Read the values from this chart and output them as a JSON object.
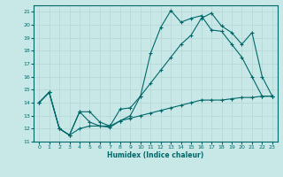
{
  "background_color": "#c8e8e8",
  "grid_color": "#b8d8d8",
  "line_color": "#006868",
  "xlabel": "Humidex (Indice chaleur)",
  "xlim": [
    -0.5,
    23.5
  ],
  "ylim": [
    11,
    21.5
  ],
  "xticks": [
    0,
    1,
    2,
    3,
    4,
    5,
    6,
    7,
    8,
    9,
    10,
    11,
    12,
    13,
    14,
    15,
    16,
    17,
    18,
    19,
    20,
    21,
    22,
    23
  ],
  "yticks": [
    11,
    12,
    13,
    14,
    15,
    16,
    17,
    18,
    19,
    20,
    21
  ],
  "line1_x": [
    0,
    1,
    2,
    3,
    4,
    5,
    6,
    7,
    8,
    9,
    10,
    11,
    12,
    13,
    14,
    15,
    16,
    17,
    18,
    19,
    20,
    21,
    22,
    23
  ],
  "line1_y": [
    14.0,
    14.8,
    12.0,
    11.5,
    13.3,
    13.3,
    12.5,
    12.2,
    13.5,
    13.6,
    14.5,
    17.8,
    19.8,
    21.1,
    20.2,
    20.5,
    20.7,
    19.6,
    19.5,
    18.5,
    17.5,
    16.0,
    14.5,
    14.5
  ],
  "line2_x": [
    0,
    1,
    2,
    3,
    4,
    5,
    6,
    7,
    8,
    9,
    10,
    11,
    12,
    13,
    14,
    15,
    16,
    17,
    18,
    19,
    20,
    21,
    22,
    23
  ],
  "line2_y": [
    14.0,
    14.8,
    12.0,
    11.5,
    13.3,
    12.5,
    12.2,
    12.1,
    12.6,
    13.0,
    14.5,
    15.5,
    16.5,
    17.5,
    18.5,
    19.2,
    20.5,
    20.9,
    19.9,
    19.4,
    18.5,
    19.4,
    16.0,
    14.5
  ],
  "line3_x": [
    0,
    1,
    2,
    3,
    4,
    5,
    6,
    7,
    8,
    9,
    10,
    11,
    12,
    13,
    14,
    15,
    16,
    17,
    18,
    19,
    20,
    21,
    22,
    23
  ],
  "line3_y": [
    14.0,
    14.8,
    12.0,
    11.5,
    12.0,
    12.2,
    12.2,
    12.2,
    12.6,
    12.8,
    13.0,
    13.2,
    13.4,
    13.6,
    13.8,
    14.0,
    14.2,
    14.2,
    14.2,
    14.3,
    14.4,
    14.4,
    14.5,
    14.5
  ]
}
